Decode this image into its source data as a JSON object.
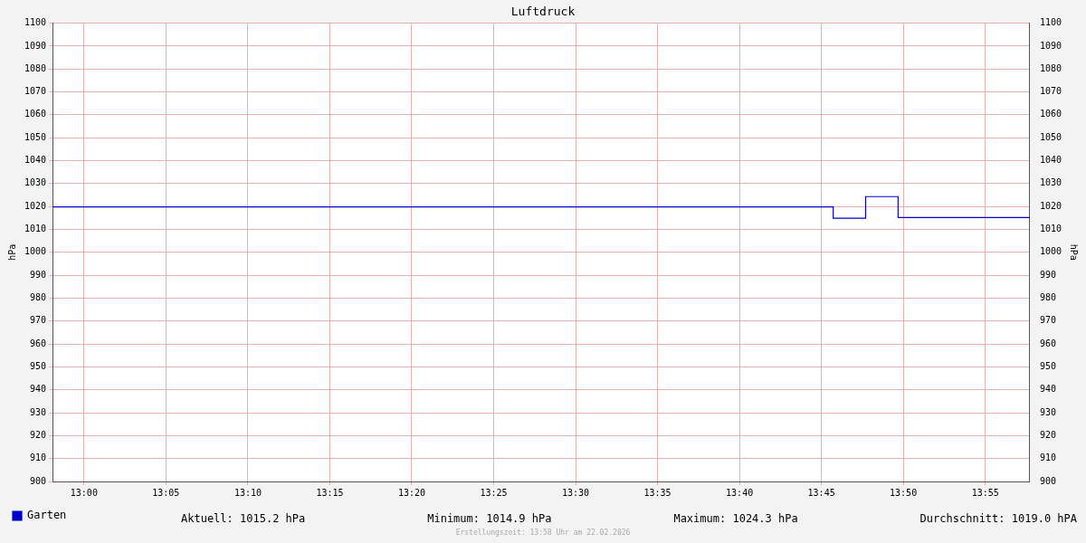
{
  "chart_data": {
    "type": "step",
    "title": "Luftdruck",
    "ylabel": "hPa",
    "y2label": "hPa",
    "x": [
      12.968,
      13.762,
      13.795,
      13.828,
      13.962
    ],
    "series": [
      {
        "name": "Garten",
        "color": "#0000cc",
        "values": [
          1019.8,
          1014.9,
          1024.3,
          1015.2,
          1015.2
        ]
      }
    ],
    "xlim": [
      12.968,
      13.962
    ],
    "xticks": [
      {
        "value": 13,
        "label": "13:00"
      },
      {
        "value": 13.0833,
        "label": "13:05"
      },
      {
        "value": 13.1667,
        "label": "13:10"
      },
      {
        "value": 13.25,
        "label": "13:15"
      },
      {
        "value": 13.3333,
        "label": "13:20"
      },
      {
        "value": 13.4167,
        "label": "13:25"
      },
      {
        "value": 13.5,
        "label": "13:30"
      },
      {
        "value": 13.5833,
        "label": "13:35"
      },
      {
        "value": 13.6667,
        "label": "13:40"
      },
      {
        "value": 13.75,
        "label": "13:45"
      },
      {
        "value": 13.8333,
        "label": "13:50"
      },
      {
        "value": 13.9167,
        "label": "13:55"
      }
    ],
    "ylim": [
      900,
      1100
    ],
    "yticks": [
      900,
      910,
      920,
      930,
      940,
      950,
      960,
      970,
      980,
      990,
      1000,
      1010,
      1020,
      1030,
      1040,
      1050,
      1060,
      1070,
      1080,
      1090,
      1100
    ],
    "y2lim": [
      900,
      1100
    ],
    "y2ticks": [
      900,
      910,
      920,
      930,
      940,
      950,
      960,
      970,
      980,
      990,
      1000,
      1010,
      1020,
      1030,
      1040,
      1050,
      1060,
      1070,
      1080,
      1090,
      1100
    ],
    "grid": true,
    "legend": "bottom left",
    "marker": "none",
    "line_style": "solid",
    "annotations": [
      "Aktuell: 1015.2 hPa",
      "Minimum: 1014.9 hPa",
      "Maximum: 1024.3 hPa",
      "Durchschnitt: 1019.0 hPA",
      "Erstellungszeit: 13:58 Uhr am 22.02.2026"
    ]
  }
}
